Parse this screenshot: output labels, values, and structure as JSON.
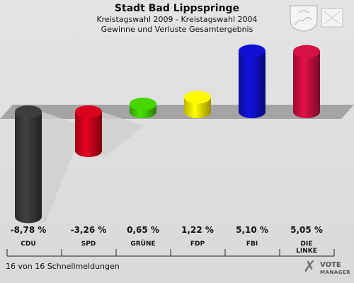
{
  "header": {
    "title": "Stadt Bad Lippspringe",
    "subtitle": "Kreistagswahl 2009 - Kreistagswahl 2004",
    "subtitle2": "Gewinne und Verluste Gesamtergebnis"
  },
  "footer": {
    "text": "16 von 16 Schnellmeldungen"
  },
  "logo": {
    "icon": "vote-checkmark-icon",
    "line1": "VOTE",
    "line2": "MANAGER"
  },
  "crest": {
    "icon": "coat-of-arms-icon"
  },
  "chart_data": {
    "type": "bar",
    "title": "Stadt Bad Lippspringe",
    "categories": [
      "CDU",
      "SPD",
      "GRÜNE",
      "FDP",
      "FBI",
      "DIE LINKE"
    ],
    "category_lines": [
      [
        "CDU"
      ],
      [
        "SPD"
      ],
      [
        "GRÜNE"
      ],
      [
        "FDP"
      ],
      [
        "FBI"
      ],
      [
        "DIE",
        "LINKE"
      ]
    ],
    "values": [
      -8.78,
      -3.26,
      0.65,
      1.22,
      5.1,
      5.05
    ],
    "value_labels": [
      "-8,78 %",
      "-3,26 %",
      "0,65 %",
      "1,22 %",
      "5,10 %",
      "5,05 %"
    ],
    "colors": [
      "#3a3a3a",
      "#d0021b",
      "#44cc00",
      "#ffee00",
      "#1010cc",
      "#cc1040"
    ],
    "ylim": [
      -9,
      6
    ],
    "xlabel": "",
    "ylabel": "",
    "grid": false,
    "legend": "none"
  }
}
